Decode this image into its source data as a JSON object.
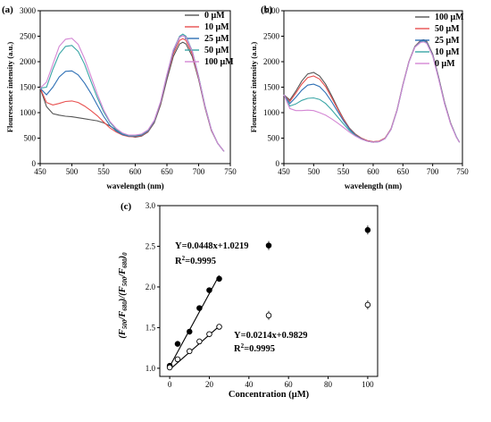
{
  "chart_data": [
    {
      "type": "line",
      "panel_label": "(a)",
      "xlabel": "wavelength (nm)",
      "ylabel": "Flourescence intensity (a.u.)",
      "xlim": [
        450,
        750
      ],
      "ylim": [
        0,
        3000
      ],
      "xticks": [
        450,
        500,
        550,
        600,
        650,
        700,
        750
      ],
      "yticks": [
        0,
        500,
        1000,
        1500,
        2000,
        2500,
        3000
      ],
      "legend_position": "top-right",
      "series": [
        {
          "name": "0 μM",
          "color": "#555555",
          "x": [
            450,
            460,
            470,
            480,
            490,
            500,
            510,
            520,
            530,
            540,
            550,
            560,
            570,
            580,
            590,
            600,
            610,
            620,
            630,
            640,
            650,
            660,
            670,
            675,
            680,
            690,
            700,
            710,
            720,
            730,
            740
          ],
          "y": [
            1480,
            1120,
            980,
            950,
            930,
            920,
            900,
            880,
            860,
            840,
            800,
            740,
            660,
            590,
            540,
            520,
            540,
            620,
            800,
            1150,
            1650,
            2100,
            2350,
            2380,
            2350,
            2100,
            1650,
            1100,
            650,
            400,
            240
          ]
        },
        {
          "name": "10 μM",
          "color": "#e8504f",
          "x": [
            450,
            460,
            470,
            480,
            490,
            500,
            510,
            520,
            530,
            540,
            550,
            560,
            570,
            580,
            590,
            600,
            610,
            620,
            630,
            640,
            650,
            660,
            670,
            675,
            680,
            690,
            700,
            710,
            720,
            730,
            740
          ],
          "y": [
            1480,
            1200,
            1150,
            1180,
            1220,
            1230,
            1200,
            1130,
            1040,
            940,
            820,
            700,
            620,
            560,
            530,
            530,
            550,
            630,
            820,
            1180,
            1700,
            2150,
            2420,
            2450,
            2420,
            2150,
            1680,
            1120,
            660,
            400,
            240
          ]
        },
        {
          "name": "25 μM",
          "color": "#2f70b5",
          "x": [
            450,
            460,
            470,
            480,
            490,
            500,
            510,
            520,
            530,
            540,
            550,
            560,
            570,
            580,
            590,
            600,
            610,
            620,
            630,
            640,
            650,
            660,
            670,
            675,
            680,
            690,
            700,
            710,
            720,
            730,
            740
          ],
          "y": [
            1480,
            1350,
            1500,
            1700,
            1810,
            1820,
            1740,
            1580,
            1380,
            1150,
            930,
            750,
            640,
            570,
            540,
            540,
            560,
            640,
            830,
            1200,
            1720,
            2200,
            2480,
            2510,
            2480,
            2200,
            1700,
            1130,
            670,
            400,
            240
          ]
        },
        {
          "name": "50 μM",
          "color": "#3aa6a6",
          "x": [
            450,
            460,
            470,
            480,
            490,
            500,
            510,
            520,
            530,
            540,
            550,
            560,
            570,
            580,
            590,
            600,
            610,
            620,
            630,
            640,
            650,
            660,
            670,
            675,
            680,
            690,
            700,
            710,
            720,
            730,
            740
          ],
          "y": [
            1480,
            1500,
            1850,
            2150,
            2300,
            2320,
            2200,
            1950,
            1620,
            1300,
            1020,
            810,
            670,
            590,
            550,
            550,
            570,
            650,
            840,
            1210,
            1740,
            2230,
            2500,
            2540,
            2500,
            2210,
            1710,
            1140,
            670,
            400,
            240
          ]
        },
        {
          "name": "100 μM",
          "color": "#d487d4",
          "x": [
            450,
            460,
            470,
            480,
            490,
            500,
            510,
            520,
            530,
            540,
            550,
            560,
            570,
            580,
            590,
            600,
            610,
            620,
            630,
            640,
            650,
            660,
            670,
            675,
            680,
            690,
            700,
            710,
            720,
            730,
            740
          ],
          "y": [
            1480,
            1600,
            1950,
            2300,
            2440,
            2460,
            2340,
            2060,
            1720,
            1370,
            1060,
            830,
            690,
            600,
            560,
            560,
            580,
            660,
            850,
            1220,
            1750,
            2230,
            2480,
            2510,
            2480,
            2200,
            1700,
            1130,
            670,
            400,
            240
          ]
        }
      ]
    },
    {
      "type": "line",
      "panel_label": "(b)",
      "xlabel": "wavelength (nm)",
      "ylabel": "Flourescence intensity (a.u.)",
      "xlim": [
        450,
        750
      ],
      "ylim": [
        0,
        3000
      ],
      "xticks": [
        450,
        500,
        550,
        600,
        650,
        700,
        750
      ],
      "yticks": [
        0,
        500,
        1000,
        1500,
        2000,
        2500,
        3000
      ],
      "legend_position": "top-right",
      "series": [
        {
          "name": "100 μM",
          "color": "#555555",
          "x": [
            450,
            460,
            470,
            480,
            490,
            500,
            510,
            520,
            530,
            540,
            550,
            560,
            570,
            580,
            590,
            600,
            610,
            620,
            630,
            640,
            650,
            660,
            670,
            680,
            685,
            690,
            700,
            710,
            720,
            730,
            740,
            745
          ],
          "y": [
            1350,
            1250,
            1420,
            1620,
            1760,
            1790,
            1720,
            1560,
            1340,
            1100,
            880,
            700,
            580,
            500,
            450,
            430,
            440,
            500,
            680,
            1050,
            1550,
            2000,
            2300,
            2420,
            2430,
            2400,
            2150,
            1700,
            1200,
            800,
            520,
            420
          ]
        },
        {
          "name": "50 μM",
          "color": "#e8504f",
          "x": [
            450,
            460,
            470,
            480,
            490,
            500,
            510,
            520,
            530,
            540,
            550,
            560,
            570,
            580,
            590,
            600,
            610,
            620,
            630,
            640,
            650,
            660,
            670,
            680,
            685,
            690,
            700,
            710,
            720,
            730,
            740,
            745
          ],
          "y": [
            1350,
            1220,
            1380,
            1560,
            1690,
            1720,
            1660,
            1510,
            1300,
            1080,
            870,
            690,
            570,
            500,
            450,
            430,
            440,
            500,
            680,
            1050,
            1550,
            2000,
            2300,
            2410,
            2420,
            2390,
            2140,
            1690,
            1200,
            800,
            520,
            420
          ]
        },
        {
          "name": "25 μM",
          "color": "#2f70b5",
          "x": [
            450,
            460,
            470,
            480,
            490,
            500,
            510,
            520,
            530,
            540,
            550,
            560,
            570,
            580,
            590,
            600,
            610,
            620,
            630,
            640,
            650,
            660,
            670,
            680,
            685,
            690,
            700,
            710,
            720,
            730,
            740,
            745
          ],
          "y": [
            1350,
            1180,
            1300,
            1440,
            1540,
            1560,
            1510,
            1390,
            1220,
            1030,
            840,
            680,
            560,
            490,
            440,
            420,
            430,
            490,
            670,
            1040,
            1540,
            1990,
            2290,
            2400,
            2410,
            2380,
            2130,
            1680,
            1190,
            790,
            520,
            420
          ]
        },
        {
          "name": "10 μM",
          "color": "#3aa6a6",
          "x": [
            450,
            460,
            470,
            480,
            490,
            500,
            510,
            520,
            530,
            540,
            550,
            560,
            570,
            580,
            590,
            600,
            610,
            620,
            630,
            640,
            650,
            660,
            670,
            680,
            685,
            690,
            700,
            710,
            720,
            730,
            740,
            745
          ],
          "y": [
            1350,
            1130,
            1170,
            1240,
            1280,
            1290,
            1260,
            1180,
            1060,
            920,
            780,
            650,
            550,
            480,
            440,
            420,
            430,
            490,
            670,
            1040,
            1540,
            1990,
            2290,
            2390,
            2400,
            2370,
            2120,
            1670,
            1180,
            790,
            520,
            420
          ]
        },
        {
          "name": "0 μM",
          "color": "#d487d4",
          "x": [
            450,
            460,
            470,
            480,
            490,
            500,
            510,
            520,
            530,
            540,
            550,
            560,
            570,
            580,
            590,
            600,
            610,
            620,
            630,
            640,
            650,
            660,
            670,
            680,
            685,
            690,
            700,
            710,
            720,
            730,
            740,
            745
          ],
          "y": [
            1350,
            1080,
            1040,
            1040,
            1050,
            1040,
            1000,
            950,
            880,
            800,
            710,
            620,
            540,
            480,
            440,
            420,
            430,
            490,
            670,
            1040,
            1540,
            1990,
            2280,
            2380,
            2390,
            2360,
            2110,
            1660,
            1170,
            780,
            510,
            420
          ]
        }
      ]
    },
    {
      "type": "scatter",
      "panel_label": "(c)",
      "xlabel": "Concentration (μM)",
      "ylabel": "(F500/F680)/(F500/F680)0",
      "xlim": [
        -5,
        105
      ],
      "ylim": [
        0.9,
        3.0
      ],
      "xticks": [
        0,
        20,
        40,
        60,
        80,
        100
      ],
      "yticks": [
        1.0,
        1.5,
        2.0,
        2.5,
        3.0
      ],
      "series": [
        {
          "marker": "filled",
          "x": [
            0,
            4,
            10,
            15,
            20,
            25,
            50,
            100
          ],
          "y": [
            1.03,
            1.3,
            1.45,
            1.74,
            1.96,
            2.1,
            2.51,
            2.7
          ],
          "fit_range": [
            0,
            25
          ],
          "equation": "Y=0.0448x+1.0219",
          "r2": "R2=0.9995"
        },
        {
          "marker": "open",
          "x": [
            0,
            4,
            10,
            15,
            20,
            25,
            50,
            100
          ],
          "y": [
            1.01,
            1.11,
            1.21,
            1.33,
            1.42,
            1.51,
            1.65,
            1.78
          ],
          "fit_range": [
            0,
            25
          ],
          "equation": "Y=0.0214x+0.9829",
          "r2": "R2=0.9995"
        }
      ]
    }
  ]
}
